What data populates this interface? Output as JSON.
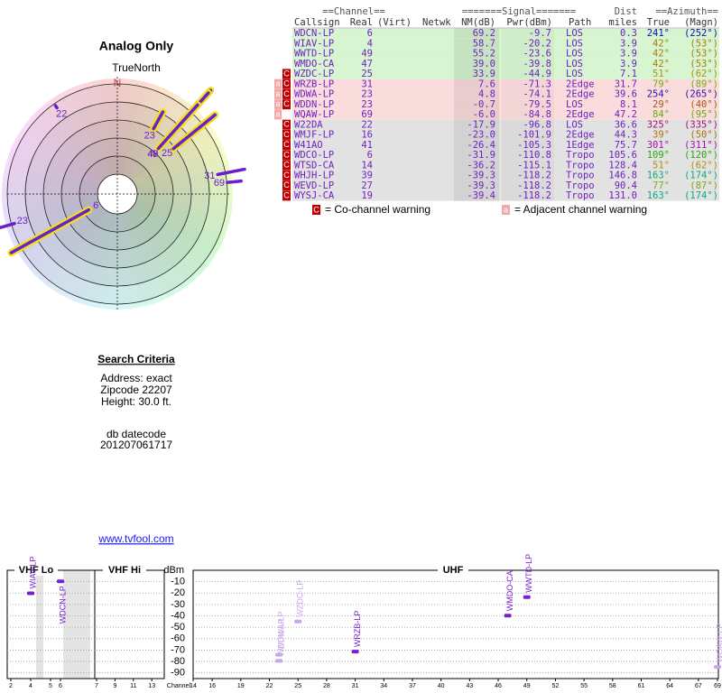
{
  "polar": {
    "title": "Analog Only",
    "north_caption": "TrueNorth",
    "north_mark": "N",
    "stations": [
      {
        "channel": "6",
        "azimuth": 241,
        "distance": 0.3,
        "nm": 69.2
      },
      {
        "channel": "4",
        "azimuth": 42,
        "distance": 3.9,
        "nm": 58.7
      },
      {
        "channel": "49",
        "azimuth": 42,
        "distance": 3.9,
        "nm": 55.2
      },
      {
        "channel": "47",
        "azimuth": 42,
        "distance": 3.9,
        "nm": 39.0
      },
      {
        "channel": "25",
        "azimuth": 51,
        "distance": 7.1,
        "nm": 33.9
      },
      {
        "channel": "31",
        "azimuth": 79,
        "distance": 31.7,
        "nm": 7.6
      },
      {
        "channel": "23",
        "azimuth": 254,
        "distance": 39.6,
        "nm": 4.8
      },
      {
        "channel": "23",
        "azimuth": 29,
        "distance": 8.1,
        "nm": -0.7
      },
      {
        "channel": "69",
        "azimuth": 84,
        "distance": 47.2,
        "nm": -6.0
      },
      {
        "channel": "22",
        "azimuth": 325,
        "distance": 36.6,
        "nm": -17.9
      }
    ]
  },
  "search": {
    "title": "Search Criteria",
    "address": "Address: exact",
    "zipcode": "Zipcode 22207",
    "height": "Height: 30.0 ft.",
    "datecode_label": "db datecode",
    "datecode": "201207061717"
  },
  "link": "www.tvfool.com",
  "table": {
    "header1": [
      "==Channel==",
      "=======Signal=======",
      "Dist",
      "==Azimuth=="
    ],
    "header2": [
      "Callsign",
      "Real",
      "(Virt)",
      "Netwk",
      "NM(dB)",
      "Pwr(dBm)",
      "Path",
      "miles",
      "True",
      "(Magn)"
    ],
    "rows": [
      {
        "callsign": "WDCN-LP",
        "real": "6",
        "nm": "69.2",
        "pwr": "-9.7",
        "path": "LOS",
        "dist": "0.3",
        "true_az": "241°",
        "magn_az": "(252°)",
        "az": 241,
        "color": "#d6f5d0"
      },
      {
        "callsign": "WIAV-LP",
        "real": "4",
        "nm": "58.7",
        "pwr": "-20.2",
        "path": "LOS",
        "dist": "3.9",
        "true_az": "42°",
        "magn_az": "(53°)",
        "az": 42,
        "color": "#d6f5d0"
      },
      {
        "callsign": "WWTD-LP",
        "real": "49",
        "nm": "55.2",
        "pwr": "-23.6",
        "path": "LOS",
        "dist": "3.9",
        "true_az": "42°",
        "magn_az": "(53°)",
        "az": 42,
        "color": "#d6f5d0"
      },
      {
        "callsign": "WMDO-CA",
        "real": "47",
        "nm": "39.0",
        "pwr": "-39.8",
        "path": "LOS",
        "dist": "3.9",
        "true_az": "42°",
        "magn_az": "(53°)",
        "az": 42,
        "color": "#d6f5d0"
      },
      {
        "callsign": "WZDC-LP",
        "real": "25",
        "nm": "33.9",
        "pwr": "-44.9",
        "path": "LOS",
        "dist": "7.1",
        "true_az": "51°",
        "magn_az": "(62°)",
        "az": 51,
        "color": "#d6f5d0",
        "co": "C"
      },
      {
        "callsign": "WRZB-LP",
        "real": "31",
        "nm": "7.6",
        "pwr": "-71.3",
        "path": "2Edge",
        "dist": "31.7",
        "true_az": "79°",
        "magn_az": "(89°)",
        "az": 79,
        "color": "#fbdcdc",
        "adj": "a",
        "co": "C"
      },
      {
        "callsign": "WDWA-LP",
        "real": "23",
        "nm": "4.8",
        "pwr": "-74.1",
        "path": "2Edge",
        "dist": "39.6",
        "true_az": "254°",
        "magn_az": "(265°)",
        "az": 254,
        "color": "#fbdcdc",
        "adj": "a",
        "co": "C"
      },
      {
        "callsign": "WDDN-LP",
        "real": "23",
        "nm": "-0.7",
        "pwr": "-79.5",
        "path": "LOS",
        "dist": "8.1",
        "true_az": "29°",
        "magn_az": "(40°)",
        "az": 29,
        "color": "#fbdcdc",
        "adj": "a",
        "co": "C"
      },
      {
        "callsign": "WQAW-LP",
        "real": "69",
        "nm": "-6.0",
        "pwr": "-84.8",
        "path": "2Edge",
        "dist": "47.2",
        "true_az": "84°",
        "magn_az": "(95°)",
        "az": 84,
        "color": "#fbdcdc",
        "adj": "a"
      },
      {
        "callsign": "W22DA",
        "real": "22",
        "nm": "-17.9",
        "pwr": "-96.8",
        "path": "LOS",
        "dist": "36.6",
        "true_az": "325°",
        "magn_az": "(335°)",
        "az": 325,
        "color": "#e2e2e2",
        "co": "C"
      },
      {
        "callsign": "WMJF-LP",
        "real": "16",
        "nm": "-23.0",
        "pwr": "-101.9",
        "path": "2Edge",
        "dist": "44.3",
        "true_az": "39°",
        "magn_az": "(50°)",
        "az": 39,
        "color": "#e2e2e2",
        "co": "C"
      },
      {
        "callsign": "W41AO",
        "real": "41",
        "nm": "-26.4",
        "pwr": "-105.3",
        "path": "1Edge",
        "dist": "75.7",
        "true_az": "301°",
        "magn_az": "(311°)",
        "az": 301,
        "color": "#e2e2e2",
        "co": "C"
      },
      {
        "callsign": "WDCO-LP",
        "real": "6",
        "nm": "-31.9",
        "pwr": "-110.8",
        "path": "Tropo",
        "dist": "105.6",
        "true_az": "109°",
        "magn_az": "(120°)",
        "az": 109,
        "color": "#e2e2e2",
        "co": "C"
      },
      {
        "callsign": "WTSD-CA",
        "real": "14",
        "nm": "-36.2",
        "pwr": "-115.1",
        "path": "Tropo",
        "dist": "128.4",
        "true_az": "51°",
        "magn_az": "(62°)",
        "az": 51,
        "color": "#e2e2e2",
        "co": "C"
      },
      {
        "callsign": "WHJH-LP",
        "real": "39",
        "nm": "-39.3",
        "pwr": "-118.2",
        "path": "Tropo",
        "dist": "146.8",
        "true_az": "163°",
        "magn_az": "(174°)",
        "az": 163,
        "color": "#e2e2e2",
        "co": "C"
      },
      {
        "callsign": "WEVD-LP",
        "real": "27",
        "nm": "-39.3",
        "pwr": "-118.2",
        "path": "Tropo",
        "dist": "90.4",
        "true_az": "77°",
        "magn_az": "(87°)",
        "az": 77,
        "color": "#e2e2e2",
        "co": "C"
      },
      {
        "callsign": "WYSJ-CA",
        "real": "19",
        "nm": "-39.4",
        "pwr": "-118.2",
        "path": "Tropo",
        "dist": "131.0",
        "true_az": "163°",
        "magn_az": "(174°)",
        "az": 163,
        "color": "#e2e2e2",
        "co": "C"
      }
    ]
  },
  "legend": {
    "co_box": "C",
    "co_text": "= Co-channel warning",
    "adj_box": "a",
    "adj_text": "= Adjacent channel warning"
  },
  "spectrum": {
    "vhf_lo": "VHF Lo",
    "vhf_hi": "VHF Hi",
    "uhf": "UHF",
    "unit": "dBm",
    "channel_label": "Channel",
    "ylim": [
      0,
      -95
    ],
    "yticks": [
      -10,
      -20,
      -30,
      -40,
      -50,
      -60,
      -70,
      -80,
      -90
    ],
    "lo_ticks": [
      2,
      4,
      5,
      6
    ],
    "hi_ticks": [
      7,
      9,
      11,
      13
    ],
    "uhf_ticks": [
      14,
      16,
      19,
      22,
      25,
      28,
      31,
      34,
      37,
      40,
      43,
      46,
      49,
      52,
      55,
      58,
      61,
      64,
      67,
      69
    ],
    "stations": [
      {
        "callsign": "WIAV-LP",
        "channel": 4,
        "power": -20.2,
        "color": "#7a1fd0"
      },
      {
        "callsign": "WDCN-LP",
        "channel": 6,
        "power": -9.7,
        "color": "#7a1fd0"
      },
      {
        "callsign": "WDWA-LP",
        "channel": 23,
        "power": -74.1,
        "color": "#c7a6ee"
      },
      {
        "callsign": "WDDN-LP",
        "channel": 23,
        "power": -79.5,
        "color": "#c7a6ee"
      },
      {
        "callsign": "WZDC-LP",
        "channel": 25,
        "power": -44.9,
        "color": "#c7a6ee"
      },
      {
        "callsign": "WRZB-LP",
        "channel": 31,
        "power": -71.3,
        "color": "#7a1fd0"
      },
      {
        "callsign": "WMDO-CA",
        "channel": 47,
        "power": -39.8,
        "color": "#7a1fd0"
      },
      {
        "callsign": "WWTD-LP",
        "channel": 49,
        "power": -23.6,
        "color": "#7a1fd0"
      },
      {
        "callsign": "WQAW-LP",
        "channel": 69,
        "power": -84.8,
        "color": "#c7a6ee"
      }
    ]
  }
}
